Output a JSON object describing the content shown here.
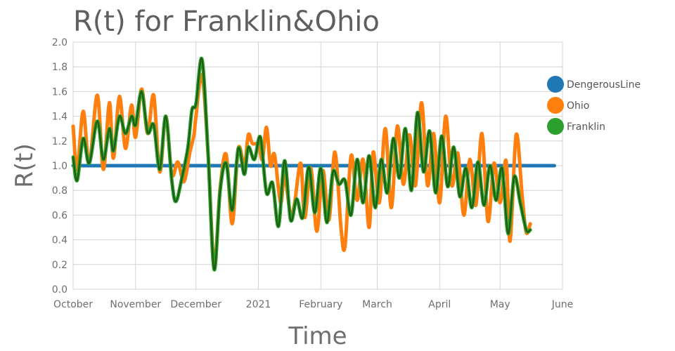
{
  "chart_data": {
    "type": "line",
    "title": "R(t) for Franklin&Ohio",
    "xlabel": "Time",
    "ylabel": "R(t)",
    "ylim": [
      0,
      2.0
    ],
    "yticks": [
      0,
      0.2,
      0.4,
      0.6,
      0.8,
      1.0,
      1.2,
      1.4,
      1.6,
      1.8,
      2.0
    ],
    "ytick_labels": [
      "0.0",
      "0.2",
      "0.4",
      "0.6",
      "0.8",
      "1.0",
      "1.2",
      "1.4",
      "1.6",
      "1.8",
      "2.0"
    ],
    "xlim": [
      "2020-10-01",
      "2021-06-01"
    ],
    "xticks": [
      {
        "date": "2020-10-01",
        "label": "October"
      },
      {
        "date": "2020-11-01",
        "label": "November"
      },
      {
        "date": "2020-12-01",
        "label": "December"
      },
      {
        "date": "2021-01-01",
        "label": "2021"
      },
      {
        "date": "2021-02-01",
        "label": "February"
      },
      {
        "date": "2021-03-01",
        "label": "March"
      },
      {
        "date": "2021-04-01",
        "label": "April"
      },
      {
        "date": "2021-05-01",
        "label": "May"
      },
      {
        "date": "2021-06-01",
        "label": "June"
      }
    ],
    "grid": true,
    "legend_position": "right",
    "series": [
      {
        "name": "DengerousLine",
        "color": "#1f77b4",
        "points": [
          [
            "2020-10-01",
            1.0
          ],
          [
            "2021-05-28",
            1.0
          ]
        ]
      },
      {
        "name": "Ohio",
        "color": "#ff7f0e",
        "points": [
          [
            "2020-10-01",
            1.32
          ],
          [
            "2020-10-03",
            0.97
          ],
          [
            "2020-10-06",
            1.44
          ],
          [
            "2020-10-09",
            1.02
          ],
          [
            "2020-10-13",
            1.57
          ],
          [
            "2020-10-16",
            0.97
          ],
          [
            "2020-10-19",
            1.51
          ],
          [
            "2020-10-21",
            1.06
          ],
          [
            "2020-10-24",
            1.56
          ],
          [
            "2020-10-27",
            1.14
          ],
          [
            "2020-10-30",
            1.49
          ],
          [
            "2020-11-01",
            1.23
          ],
          [
            "2020-11-04",
            1.62
          ],
          [
            "2020-11-07",
            1.26
          ],
          [
            "2020-11-10",
            1.57
          ],
          [
            "2020-11-13",
            0.95
          ],
          [
            "2020-11-16",
            1.4
          ],
          [
            "2020-11-19",
            0.93
          ],
          [
            "2020-11-22",
            1.03
          ],
          [
            "2020-11-25",
            0.87
          ],
          [
            "2020-11-28",
            1.11
          ],
          [
            "2020-11-30",
            1.25
          ],
          [
            "2020-12-01",
            1.4
          ],
          [
            "2020-12-04",
            1.73
          ],
          [
            "2020-12-07",
            1.1
          ],
          [
            "2020-12-10",
            0.2
          ],
          [
            "2020-12-13",
            0.82
          ],
          [
            "2020-12-16",
            1.09
          ],
          [
            "2020-12-19",
            0.53
          ],
          [
            "2020-12-22",
            1.14
          ],
          [
            "2020-12-25",
            1.0
          ],
          [
            "2020-12-27",
            1.25
          ],
          [
            "2020-12-29",
            1.18
          ],
          [
            "2021-01-01",
            1.17
          ],
          [
            "2021-01-03",
            1.05
          ],
          [
            "2021-01-05",
            1.31
          ],
          [
            "2021-01-07",
            1.0
          ],
          [
            "2021-01-09",
            1.09
          ],
          [
            "2021-01-12",
            0.7
          ],
          [
            "2021-01-14",
            0.92
          ],
          [
            "2021-01-17",
            0.6
          ],
          [
            "2021-01-19",
            0.7
          ],
          [
            "2021-01-22",
            1.02
          ],
          [
            "2021-01-24",
            0.58
          ],
          [
            "2021-01-27",
            0.98
          ],
          [
            "2021-01-30",
            0.47
          ],
          [
            "2021-02-02",
            0.96
          ],
          [
            "2021-02-05",
            0.56
          ],
          [
            "2021-02-08",
            1.11
          ],
          [
            "2021-02-11",
            0.5
          ],
          [
            "2021-02-13",
            0.35
          ],
          [
            "2021-02-16",
            1.08
          ],
          [
            "2021-02-19",
            0.72
          ],
          [
            "2021-02-22",
            1.05
          ],
          [
            "2021-02-25",
            0.5
          ],
          [
            "2021-02-27",
            1.11
          ],
          [
            "2021-03-02",
            0.7
          ],
          [
            "2021-03-05",
            1.3
          ],
          [
            "2021-03-08",
            0.66
          ],
          [
            "2021-03-11",
            1.32
          ],
          [
            "2021-03-14",
            0.85
          ],
          [
            "2021-03-17",
            1.25
          ],
          [
            "2021-03-20",
            0.84
          ],
          [
            "2021-03-23",
            1.51
          ],
          [
            "2021-03-26",
            0.84
          ],
          [
            "2021-03-29",
            1.26
          ],
          [
            "2021-04-01",
            0.7
          ],
          [
            "2021-04-04",
            1.4
          ],
          [
            "2021-04-07",
            0.84
          ],
          [
            "2021-04-10",
            1.1
          ],
          [
            "2021-04-13",
            0.6
          ],
          [
            "2021-04-16",
            1.05
          ],
          [
            "2021-04-19",
            0.68
          ],
          [
            "2021-04-22",
            1.26
          ],
          [
            "2021-04-25",
            0.55
          ],
          [
            "2021-04-28",
            1.02
          ],
          [
            "2021-05-01",
            0.7
          ],
          [
            "2021-05-04",
            1.04
          ],
          [
            "2021-05-06",
            0.39
          ],
          [
            "2021-05-09",
            1.25
          ],
          [
            "2021-05-12",
            0.75
          ],
          [
            "2021-05-14",
            0.46
          ],
          [
            "2021-05-16",
            0.53
          ]
        ]
      },
      {
        "name": "Franklin",
        "color": "#2ca02c",
        "points": [
          [
            "2020-10-01",
            1.07
          ],
          [
            "2020-10-03",
            0.88
          ],
          [
            "2020-10-06",
            1.22
          ],
          [
            "2020-10-09",
            1.02
          ],
          [
            "2020-10-13",
            1.36
          ],
          [
            "2020-10-16",
            1.05
          ],
          [
            "2020-10-19",
            1.3
          ],
          [
            "2020-10-21",
            1.12
          ],
          [
            "2020-10-24",
            1.4
          ],
          [
            "2020-10-27",
            1.26
          ],
          [
            "2020-10-30",
            1.4
          ],
          [
            "2020-11-01",
            1.33
          ],
          [
            "2020-11-04",
            1.6
          ],
          [
            "2020-11-07",
            1.27
          ],
          [
            "2020-11-10",
            1.33
          ],
          [
            "2020-11-13",
            0.97
          ],
          [
            "2020-11-16",
            1.4
          ],
          [
            "2020-11-19",
            0.88
          ],
          [
            "2020-11-21",
            0.71
          ],
          [
            "2020-11-24",
            0.9
          ],
          [
            "2020-11-27",
            1.15
          ],
          [
            "2020-11-29",
            1.45
          ],
          [
            "2020-12-01",
            1.5
          ],
          [
            "2020-12-04",
            1.86
          ],
          [
            "2020-12-07",
            1.1
          ],
          [
            "2020-12-10",
            0.16
          ],
          [
            "2020-12-13",
            0.8
          ],
          [
            "2020-12-16",
            1.02
          ],
          [
            "2020-12-19",
            0.64
          ],
          [
            "2020-12-22",
            1.14
          ],
          [
            "2020-12-25",
            0.93
          ],
          [
            "2020-12-27",
            1.15
          ],
          [
            "2020-12-30",
            1.05
          ],
          [
            "2021-01-02",
            1.23
          ],
          [
            "2021-01-05",
            0.78
          ],
          [
            "2021-01-08",
            0.86
          ],
          [
            "2021-01-11",
            0.51
          ],
          [
            "2021-01-14",
            1.04
          ],
          [
            "2021-01-17",
            0.56
          ],
          [
            "2021-01-20",
            0.73
          ],
          [
            "2021-01-23",
            0.58
          ],
          [
            "2021-01-26",
            0.99
          ],
          [
            "2021-01-29",
            0.62
          ],
          [
            "2021-02-01",
            0.98
          ],
          [
            "2021-02-04",
            0.54
          ],
          [
            "2021-02-07",
            0.95
          ],
          [
            "2021-02-10",
            0.85
          ],
          [
            "2021-02-13",
            0.88
          ],
          [
            "2021-02-16",
            0.6
          ],
          [
            "2021-02-19",
            1.05
          ],
          [
            "2021-02-22",
            0.7
          ],
          [
            "2021-02-25",
            1.08
          ],
          [
            "2021-02-28",
            0.66
          ],
          [
            "2021-03-03",
            1.05
          ],
          [
            "2021-03-06",
            0.78
          ],
          [
            "2021-03-09",
            1.22
          ],
          [
            "2021-03-12",
            0.9
          ],
          [
            "2021-03-15",
            1.3
          ],
          [
            "2021-03-18",
            0.8
          ],
          [
            "2021-03-21",
            1.43
          ],
          [
            "2021-03-24",
            0.95
          ],
          [
            "2021-03-27",
            1.28
          ],
          [
            "2021-03-30",
            0.78
          ],
          [
            "2021-04-02",
            1.24
          ],
          [
            "2021-04-05",
            0.83
          ],
          [
            "2021-04-08",
            1.15
          ],
          [
            "2021-04-11",
            0.75
          ],
          [
            "2021-04-14",
            0.98
          ],
          [
            "2021-04-17",
            0.66
          ],
          [
            "2021-04-20",
            1.03
          ],
          [
            "2021-04-23",
            0.68
          ],
          [
            "2021-04-26",
            1.0
          ],
          [
            "2021-04-29",
            0.72
          ],
          [
            "2021-05-02",
            0.98
          ],
          [
            "2021-05-05",
            0.45
          ],
          [
            "2021-05-08",
            0.91
          ],
          [
            "2021-05-11",
            0.7
          ],
          [
            "2021-05-14",
            0.48
          ],
          [
            "2021-05-16",
            0.48
          ]
        ]
      }
    ]
  }
}
